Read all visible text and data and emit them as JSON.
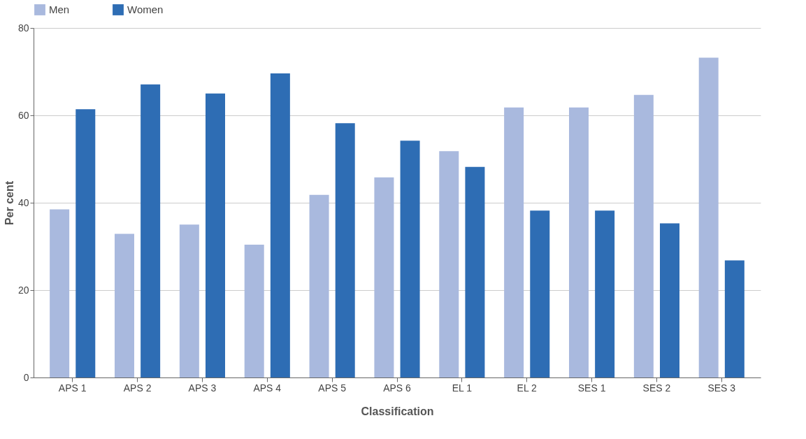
{
  "chart_data": {
    "type": "bar",
    "xlabel": "Classification",
    "ylabel": "Per cent",
    "categories": [
      "APS 1",
      "APS 2",
      "APS 3",
      "APS 4",
      "APS 5",
      "APS 6",
      "EL 1",
      "EL 2",
      "SES 1",
      "SES 2",
      "SES 3"
    ],
    "series": [
      {
        "name": "Men",
        "color": "#a9b9de",
        "values": [
          38.5,
          32.9,
          35.0,
          30.4,
          41.8,
          45.8,
          51.8,
          61.8,
          61.8,
          64.7,
          73.2
        ]
      },
      {
        "name": "Women",
        "color": "#2e6db4",
        "values": [
          61.4,
          67.1,
          65.0,
          69.6,
          58.2,
          54.2,
          48.2,
          38.2,
          38.2,
          35.3,
          26.8
        ]
      }
    ],
    "ylim": [
      0,
      80
    ],
    "yticks": [
      0,
      20,
      40,
      60,
      80
    ],
    "grid": "y",
    "legend": "top"
  }
}
